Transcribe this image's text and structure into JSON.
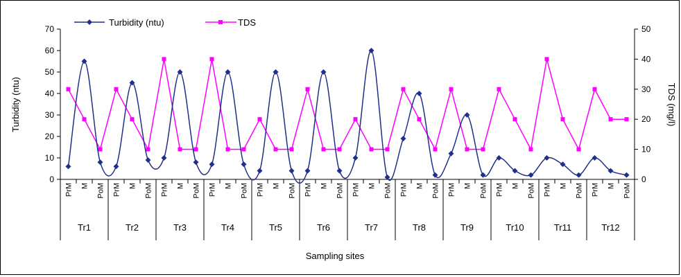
{
  "chart_data": {
    "type": "line",
    "xlabel": "Sampling sites",
    "ylabel_left": "Turbidity (ntu)",
    "ylabel_right": "TDS  (mg/l)",
    "ylim_left": [
      0,
      70
    ],
    "ylim_right": [
      0,
      50
    ],
    "yticks_left": [
      "0",
      "10",
      "20",
      "30",
      "40",
      "50",
      "60",
      "70"
    ],
    "yticks_right": [
      "0",
      "10",
      "20",
      "30",
      "40",
      "50"
    ],
    "legend_position": "top-left",
    "groups": [
      "Tr1",
      "Tr2",
      "Tr3",
      "Tr4",
      "Tr5",
      "Tr6",
      "Tr7",
      "Tr8",
      "Tr9",
      "Tr10",
      "Tr11",
      "Tr12"
    ],
    "subcategories": [
      "PrM",
      "M",
      "PoM"
    ],
    "series": [
      {
        "name": "Turbidity (ntu)",
        "axis": "left",
        "color": "#1f2f8a",
        "marker": "diamond",
        "values": [
          6,
          55,
          8,
          6,
          45,
          9,
          10,
          50,
          8,
          7,
          50,
          7,
          4,
          50,
          4,
          4,
          50,
          4,
          10,
          60,
          1,
          19,
          40,
          2,
          12,
          30,
          2,
          10,
          4,
          2,
          10,
          7,
          2,
          10,
          4,
          2
        ]
      },
      {
        "name": "TDS",
        "axis": "right",
        "color": "#ff00ff",
        "marker": "square",
        "values": [
          30,
          20,
          10,
          30,
          20,
          10,
          40,
          10,
          10,
          40,
          10,
          10,
          20,
          10,
          10,
          30,
          10,
          10,
          20,
          10,
          10,
          30,
          20,
          10,
          30,
          10,
          10,
          30,
          20,
          10,
          40,
          20,
          10,
          30,
          20,
          20
        ]
      }
    ]
  }
}
